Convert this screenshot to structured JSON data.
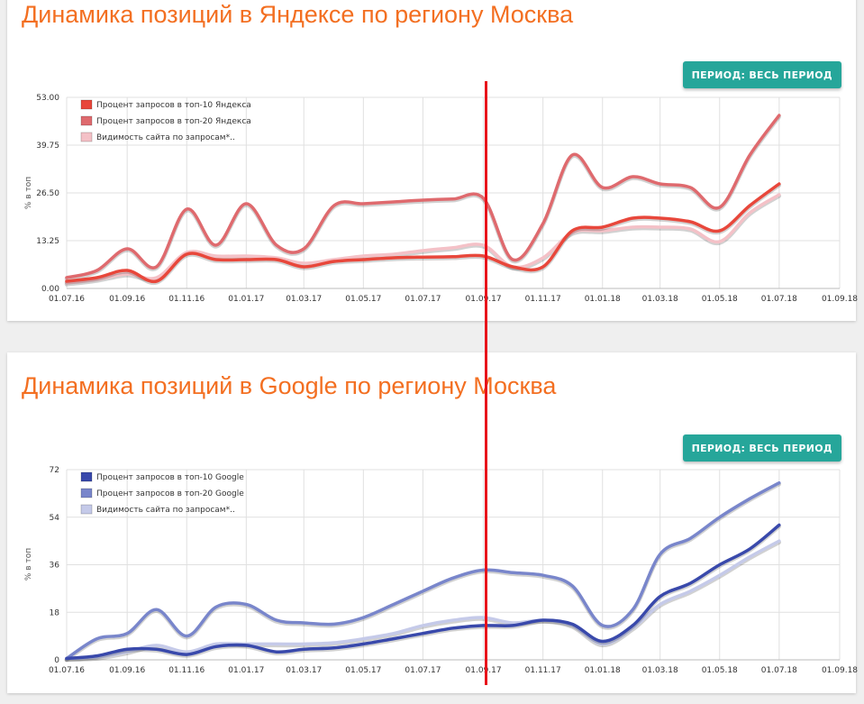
{
  "yandex": {
    "title": "Динамика позиций в Яндексе по региону Москва",
    "period_label": "ПЕРИОД: ВЕСЬ ПЕРИОД"
  },
  "google": {
    "title": "Динамика позиций в Google по региону Москва",
    "period_label": "ПЕРИОД: ВЕСЬ ПЕРИОД"
  },
  "annotation": {
    "marker_color": "#e8141b",
    "marker_date": "01.09.17"
  },
  "chart_data": [
    {
      "type": "line",
      "ylabel": "% в топ",
      "ylim": [
        0,
        53
      ],
      "ytick_labels": [
        "0.00",
        "13.25",
        "26.50",
        "39.75",
        "53.00"
      ],
      "x_tick_labels": [
        "01.07.16",
        "01.09.16",
        "01.11.16",
        "01.01.17",
        "01.03.17",
        "01.05.17",
        "01.07.17",
        "01.09.17",
        "01.11.17",
        "01.01.18",
        "01.03.18",
        "01.05.18",
        "01.07.18",
        "01.09.18"
      ],
      "grid": true,
      "legend_position": "top-left",
      "series": [
        {
          "name": "Процент запросов в топ-10 Яндекса",
          "color": "#e8473b",
          "x": [
            "01.07.16",
            "01.08.16",
            "01.09.16",
            "01.10.16",
            "01.11.16",
            "01.12.16",
            "01.01.17",
            "01.02.17",
            "01.03.17",
            "01.04.17",
            "01.05.17",
            "01.06.17",
            "01.07.17",
            "01.08.17",
            "01.09.17",
            "01.10.17",
            "01.11.17",
            "01.12.17",
            "01.01.18",
            "01.02.18",
            "01.03.18",
            "01.04.18",
            "01.05.18",
            "01.06.18",
            "01.07.18"
          ],
          "values": [
            2,
            3,
            5,
            2,
            9.5,
            8,
            8,
            8,
            6,
            7.5,
            8,
            8.5,
            8.7,
            8.8,
            9,
            6,
            6,
            16,
            17,
            19.5,
            19.5,
            18.5,
            16,
            23,
            29
          ]
        },
        {
          "name": "Процент запросов в топ-20 Яндекса",
          "color": "#df6a6e",
          "x": [
            "01.07.16",
            "01.08.16",
            "01.09.16",
            "01.10.16",
            "01.11.16",
            "01.12.16",
            "01.01.17",
            "01.02.17",
            "01.03.17",
            "01.04.17",
            "01.05.17",
            "01.06.17",
            "01.07.17",
            "01.08.17",
            "01.09.17",
            "01.10.17",
            "01.11.17",
            "01.12.17",
            "01.01.18",
            "01.02.18",
            "01.03.18",
            "01.04.18",
            "01.05.18",
            "01.06.18",
            "01.07.18"
          ],
          "values": [
            3,
            5,
            11,
            6,
            22,
            12,
            23.5,
            12,
            11,
            23,
            23.5,
            24,
            24.5,
            24.8,
            25,
            8,
            18,
            37,
            28,
            31,
            29,
            28,
            22.5,
            37,
            48
          ]
        },
        {
          "name": "Видимость сайта по запросам*..",
          "color": "#f4c1c7",
          "x": [
            "01.07.16",
            "01.08.16",
            "01.09.16",
            "01.10.16",
            "01.11.16",
            "01.12.16",
            "01.01.17",
            "01.02.17",
            "01.03.17",
            "01.04.17",
            "01.05.17",
            "01.06.17",
            "01.07.17",
            "01.08.17",
            "01.09.17",
            "01.10.17",
            "01.11.17",
            "01.12.17",
            "01.01.18",
            "01.02.18",
            "01.03.18",
            "01.04.18",
            "01.05.18",
            "01.06.18",
            "01.07.18"
          ],
          "values": [
            1.5,
            2.5,
            4,
            3,
            10,
            9,
            9,
            8.5,
            7,
            8,
            9,
            9.5,
            10.5,
            11.3,
            12,
            6,
            8.5,
            15.5,
            16,
            17,
            17,
            16.5,
            13,
            21,
            26
          ]
        }
      ]
    },
    {
      "type": "line",
      "ylabel": "% в топ",
      "ylim": [
        0,
        72
      ],
      "ytick_labels": [
        "0",
        "18",
        "36",
        "54",
        "72"
      ],
      "x_tick_labels": [
        "01.07.16",
        "01.09.16",
        "01.11.16",
        "01.01.17",
        "01.03.17",
        "01.05.17",
        "01.07.17",
        "01.09.17",
        "01.11.17",
        "01.01.18",
        "01.03.18",
        "01.05.18",
        "01.07.18",
        "01.09.18"
      ],
      "grid": true,
      "legend_position": "top-left",
      "series": [
        {
          "name": "Процент запросов в топ-10 Google",
          "color": "#3949ab",
          "x": [
            "01.07.16",
            "01.08.16",
            "01.09.16",
            "01.10.16",
            "01.11.16",
            "01.12.16",
            "01.01.17",
            "01.02.17",
            "01.03.17",
            "01.04.17",
            "01.05.17",
            "01.06.17",
            "01.07.17",
            "01.08.17",
            "01.09.17",
            "01.10.17",
            "01.11.17",
            "01.12.17",
            "01.01.18",
            "01.02.18",
            "01.03.18",
            "01.04.18",
            "01.05.18",
            "01.06.18",
            "01.07.18"
          ],
          "values": [
            0.5,
            1.5,
            4,
            4,
            2,
            5,
            5.5,
            3,
            4,
            4.5,
            6,
            8,
            10,
            12,
            13,
            13,
            15,
            13.5,
            7,
            13,
            24,
            29,
            36,
            42,
            51
          ]
        },
        {
          "name": "Процент запросов в топ-20 Google",
          "color": "#7986cb",
          "x": [
            "01.07.16",
            "01.08.16",
            "01.09.16",
            "01.10.16",
            "01.11.16",
            "01.12.16",
            "01.01.17",
            "01.02.17",
            "01.03.17",
            "01.04.17",
            "01.05.17",
            "01.06.17",
            "01.07.17",
            "01.08.17",
            "01.09.17",
            "01.10.17",
            "01.11.17",
            "01.12.17",
            "01.01.18",
            "01.02.18",
            "01.03.18",
            "01.04.18",
            "01.05.18",
            "01.06.18",
            "01.07.18"
          ],
          "values": [
            0.5,
            8,
            10,
            19,
            9,
            20,
            21,
            15,
            14,
            13.5,
            16,
            21,
            26,
            31,
            34,
            33,
            32,
            28,
            13,
            19,
            40,
            46,
            54,
            61,
            67
          ]
        },
        {
          "name": "Видимость сайта по запросам*..",
          "color": "#c5cae9",
          "x": [
            "01.07.16",
            "01.08.16",
            "01.09.16",
            "01.10.16",
            "01.11.16",
            "01.12.16",
            "01.01.17",
            "01.02.17",
            "01.03.17",
            "01.04.17",
            "01.05.17",
            "01.06.17",
            "01.07.17",
            "01.08.17",
            "01.09.17",
            "01.10.17",
            "01.11.17",
            "01.12.17",
            "01.01.18",
            "01.02.18",
            "01.03.18",
            "01.04.18",
            "01.05.18",
            "01.06.18",
            "01.07.18"
          ],
          "values": [
            0.5,
            1,
            3,
            5.5,
            3,
            6,
            6,
            6,
            6,
            6.5,
            8,
            10,
            13,
            15,
            16,
            14,
            15,
            13,
            6,
            12,
            21,
            26,
            32,
            39,
            45
          ]
        }
      ]
    }
  ]
}
